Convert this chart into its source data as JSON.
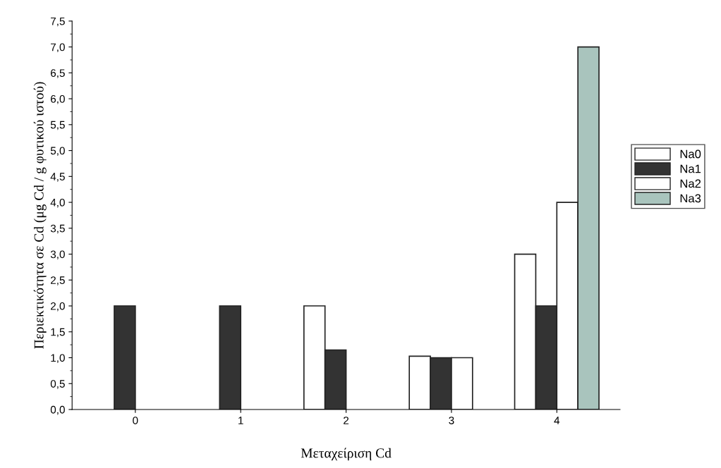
{
  "chart_data": {
    "type": "bar",
    "xlabel": "Μεταχείριση Cd",
    "ylabel": "Περιεκτικότητα σε Cd (μg Cd / g φυτικού ιστού)",
    "categories": [
      "0",
      "1",
      "2",
      "3",
      "4"
    ],
    "series": [
      {
        "name": "Na0",
        "color": "#ffffff",
        "values": [
          null,
          null,
          2.0,
          1.03,
          3.0
        ]
      },
      {
        "name": "Na1",
        "color": "#333333",
        "values": [
          2.0,
          2.0,
          1.15,
          1.0,
          2.0
        ]
      },
      {
        "name": "Na2",
        "color": "#ffffff",
        "values": [
          null,
          null,
          null,
          1.0,
          4.0
        ]
      },
      {
        "name": "Na3",
        "color": "#a9c4bd",
        "values": [
          null,
          null,
          null,
          null,
          7.0
        ]
      }
    ],
    "ylim": [
      0,
      7.5
    ],
    "yticks": [
      {
        "value": 0,
        "label": "0,0"
      },
      {
        "value": 0.5,
        "label": "0,5"
      },
      {
        "value": 1,
        "label": "1,0"
      },
      {
        "value": 1.5,
        "label": "1,5"
      },
      {
        "value": 2,
        "label": "2,0"
      },
      {
        "value": 2.5,
        "label": "2,5"
      },
      {
        "value": 3,
        "label": "3,0"
      },
      {
        "value": 3.5,
        "label": "3,5"
      },
      {
        "value": 4,
        "label": "4,0"
      },
      {
        "value": 4.5,
        "label": "4,5"
      },
      {
        "value": 5,
        "label": "5,0"
      },
      {
        "value": 5.5,
        "label": "5,5"
      },
      {
        "value": 6,
        "label": "6,0"
      },
      {
        "value": 6.5,
        "label": "6,5"
      },
      {
        "value": 7,
        "label": "7,0"
      },
      {
        "value": 7.5,
        "label": "7,5"
      }
    ],
    "legend": "right",
    "grid": false
  }
}
